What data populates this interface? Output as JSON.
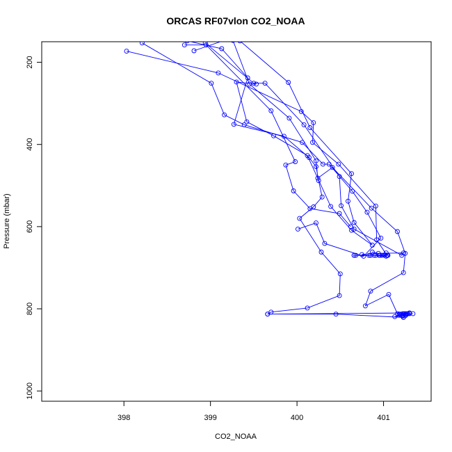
{
  "chart_data": {
    "type": "line",
    "title": "ORCAS RF07vlon CO2_NOAA",
    "xlabel": "CO2_NOAA",
    "ylabel": "Pressure (mbar)",
    "xlim": [
      397.05,
      401.55
    ],
    "ylim": [
      1025,
      150
    ],
    "y_reversed": true,
    "grid": false,
    "legend": "none",
    "series_color": "#0000ff",
    "x_ticks": [
      {
        "value": 398,
        "label": "398"
      },
      {
        "value": 399,
        "label": "399"
      },
      {
        "value": 400,
        "label": "400"
      },
      {
        "value": 401,
        "label": "401"
      }
    ],
    "y_ticks": [
      {
        "value": 200,
        "label": "200"
      },
      {
        "value": 400,
        "label": "400"
      },
      {
        "value": 600,
        "label": "600"
      },
      {
        "value": 800,
        "label": "800"
      },
      {
        "value": 1000,
        "label": "1000"
      }
    ],
    "series": [
      {
        "points": [
          [
            399.66,
            813
          ],
          [
            399.7,
            808
          ],
          [
            400.12,
            798
          ],
          [
            400.49,
            768
          ],
          [
            400.5,
            715
          ],
          [
            400.28,
            662
          ],
          [
            400.03,
            580
          ],
          [
            400.19,
            552
          ],
          [
            400.29,
            528
          ],
          [
            400.25,
            488
          ],
          [
            400.22,
            454
          ],
          [
            400.14,
            432
          ],
          [
            399.85,
            380
          ],
          [
            399.27,
            351
          ],
          [
            399.43,
            238
          ],
          [
            399.13,
            167
          ],
          [
            398.73,
            148
          ],
          [
            399.26,
            147
          ],
          [
            399.45,
            253
          ],
          [
            399.91,
            336
          ],
          [
            400.22,
            440
          ],
          [
            400.24,
            482
          ],
          [
            400.41,
            456
          ],
          [
            400.86,
            555
          ],
          [
            401.16,
            612
          ],
          [
            401.25,
            665
          ],
          [
            401.23,
            712
          ],
          [
            400.85,
            757
          ],
          [
            400.79,
            793
          ],
          [
            401.06,
            765
          ],
          [
            401.16,
            812
          ],
          [
            401.18,
            813
          ],
          [
            401.22,
            818
          ],
          [
            401.26,
            812
          ],
          [
            401.3,
            812
          ],
          [
            401.34,
            812
          ],
          [
            401.28,
            812
          ],
          [
            401.23,
            813
          ],
          [
            401.2,
            815
          ],
          [
            401.13,
            819
          ],
          [
            401.25,
            817
          ],
          [
            401.23,
            821
          ],
          [
            400.45,
            813
          ],
          [
            399.66,
            813
          ],
          [
            401.3,
            810
          ],
          [
            401.27,
            813
          ],
          [
            401.24,
            812
          ],
          [
            401.22,
            812
          ],
          [
            401.26,
            815
          ],
          [
            401.19,
            813
          ]
        ]
      },
      {
        "points": [
          [
            398.03,
            173
          ],
          [
            399.09,
            226
          ],
          [
            400.05,
            320
          ],
          [
            400.19,
            347
          ],
          [
            400.18,
            395
          ],
          [
            400.48,
            448
          ],
          [
            400.91,
            550
          ],
          [
            400.92,
            632
          ],
          [
            401.04,
            670
          ],
          [
            400.68,
            670
          ],
          [
            400.85,
            670
          ],
          [
            400.91,
            670
          ],
          [
            400.98,
            670
          ],
          [
            401.05,
            670
          ],
          [
            400.66,
            670
          ]
        ]
      },
      {
        "points": [
          [
            398.21,
            153
          ],
          [
            399.01,
            251
          ],
          [
            399.16,
            328
          ],
          [
            399.39,
            352
          ],
          [
            400.06,
            395
          ],
          [
            400.3,
            448
          ],
          [
            400.37,
            448
          ],
          [
            400.64,
            514
          ],
          [
            400.81,
            565
          ],
          [
            400.97,
            628
          ],
          [
            400.77,
            672
          ],
          [
            400.32,
            641
          ],
          [
            400.22,
            591
          ],
          [
            400.01,
            606
          ]
        ]
      },
      {
        "points": [
          [
            398.81,
            172
          ],
          [
            399.21,
            143
          ],
          [
            399.34,
            148
          ],
          [
            399.9,
            249
          ],
          [
            400.15,
            359
          ],
          [
            400.63,
            471
          ],
          [
            400.59,
            538
          ],
          [
            400.66,
            590
          ],
          [
            400.87,
            645
          ],
          [
            400.63,
            609
          ],
          [
            400.39,
            551
          ],
          [
            400.12,
            427
          ],
          [
            399.73,
            379
          ],
          [
            399.42,
            345
          ],
          [
            399.3,
            248
          ],
          [
            399.53,
            253
          ]
        ]
      },
      {
        "points": [
          [
            398.94,
            153
          ],
          [
            399.5,
            251
          ],
          [
            399.63,
            251
          ],
          [
            400.08,
            352
          ],
          [
            400.49,
            478
          ],
          [
            400.51,
            549
          ],
          [
            400.66,
            606
          ],
          [
            401.21,
            670
          ],
          [
            401.23,
            664
          ],
          [
            400.94,
            665
          ],
          [
            400.87,
            662
          ],
          [
            400.85,
            670
          ],
          [
            400.66,
            670
          ],
          [
            400.83,
            670
          ],
          [
            400.75,
            668
          ],
          [
            401.03,
            672
          ],
          [
            400.89,
            670
          ],
          [
            400.95,
            670
          ],
          [
            401.01,
            670
          ],
          [
            400.96,
            670
          ],
          [
            401.03,
            664
          ],
          [
            401.05,
            670
          ]
        ]
      },
      {
        "points": [
          [
            398.7,
            158
          ],
          [
            398.95,
            158
          ],
          [
            399.7,
            318
          ],
          [
            399.98,
            442
          ],
          [
            399.87,
            450
          ],
          [
            399.96,
            513
          ],
          [
            400.15,
            556
          ],
          [
            400.49,
            568
          ],
          [
            400.62,
            600
          ]
        ]
      }
    ]
  }
}
